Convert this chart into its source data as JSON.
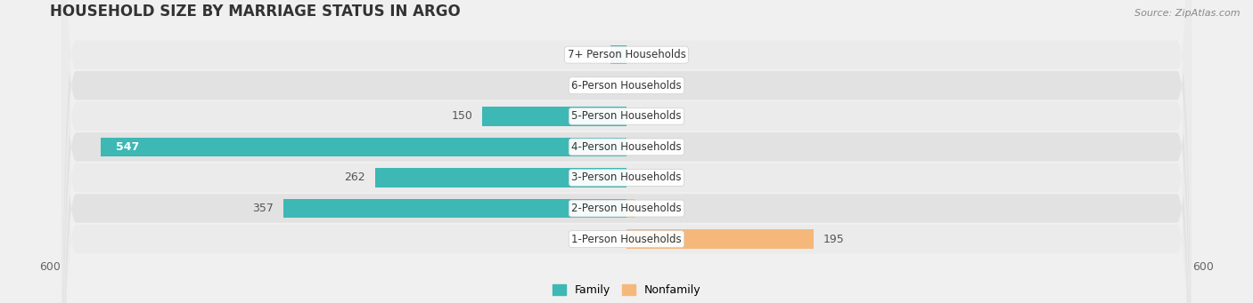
{
  "title": "HOUSEHOLD SIZE BY MARRIAGE STATUS IN ARGO",
  "source": "Source: ZipAtlas.com",
  "categories": [
    "1-Person Households",
    "2-Person Households",
    "3-Person Households",
    "4-Person Households",
    "5-Person Households",
    "6-Person Households",
    "7+ Person Households"
  ],
  "family_values": [
    0,
    357,
    262,
    547,
    150,
    0,
    17
  ],
  "nonfamily_values": [
    195,
    9,
    0,
    0,
    0,
    0,
    0
  ],
  "family_color": "#3db8b4",
  "nonfamily_color": "#f5b87a",
  "axis_limit": 600,
  "bar_height": 0.62,
  "background_color": "#f0f0f0",
  "row_light": "#ebebeb",
  "row_dark": "#e2e2e2",
  "title_fontsize": 12,
  "label_fontsize": 9,
  "tick_fontsize": 9,
  "legend_fontsize": 9,
  "source_fontsize": 8,
  "row_rounding": 15
}
